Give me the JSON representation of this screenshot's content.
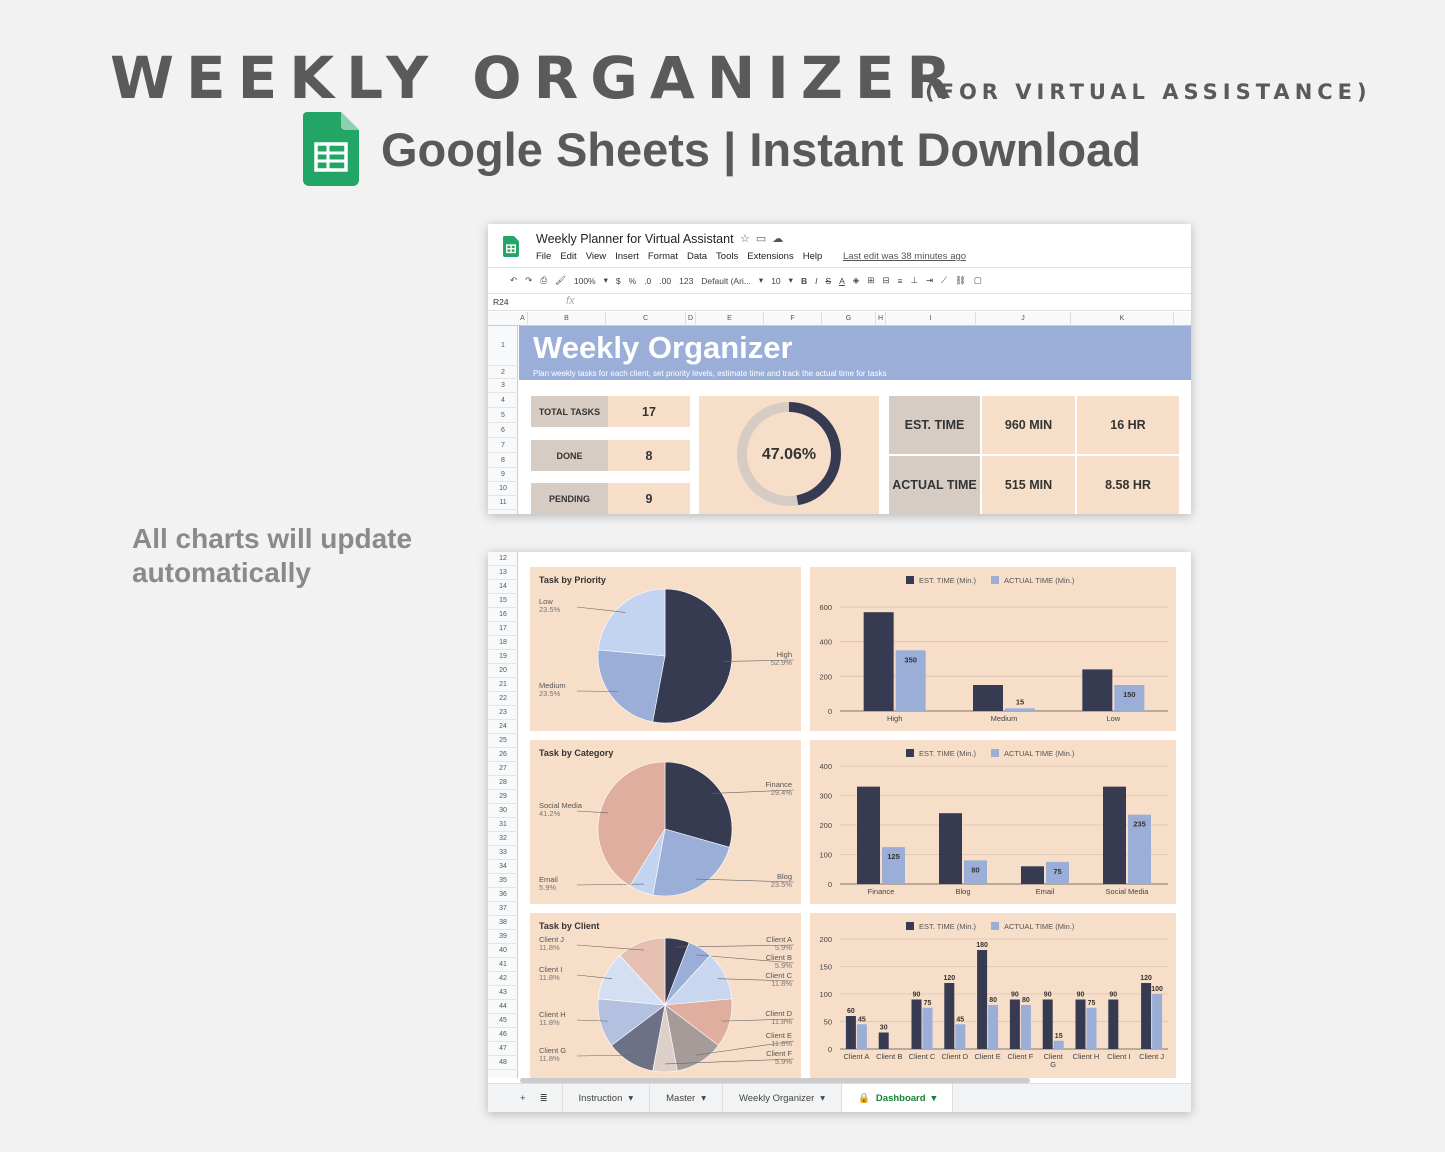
{
  "hero": {
    "title": "WEEKLY ORGANIZER",
    "subtitle": "(FOR VIRTUAL ASSISTANCE)",
    "line2": "Google Sheets | Instant Download",
    "side_note": "All charts will update automatically"
  },
  "sheet": {
    "doc_title": "Weekly Planner for Virtual Assistant",
    "menus": [
      "File",
      "Edit",
      "View",
      "Insert",
      "Format",
      "Data",
      "Tools",
      "Extensions",
      "Help"
    ],
    "last_edit": "Last edit was 38 minutes ago",
    "toolbar": {
      "zoom": "100%",
      "currency": "$",
      "percent": "%",
      "dec_less": ".0",
      "dec_more": ".00",
      "format": "123",
      "font": "Default (Ari...",
      "font_size": "10"
    },
    "cell_ref": "R24",
    "fx": "fx",
    "columns": [
      "A",
      "B",
      "C",
      "D",
      "E",
      "F",
      "G",
      "H",
      "I",
      "J",
      "K"
    ],
    "rows_top": [
      "1",
      "2",
      "3",
      "4",
      "5",
      "6",
      "7",
      "8",
      "9",
      "10",
      "11"
    ],
    "rows_bottom": [
      "12",
      "13",
      "14",
      "15",
      "16",
      "17",
      "18",
      "19",
      "20",
      "21",
      "22",
      "23",
      "24",
      "25",
      "26",
      "27",
      "28",
      "29",
      "30",
      "31",
      "32",
      "33",
      "34",
      "35",
      "36",
      "37",
      "38",
      "39",
      "40",
      "41",
      "42",
      "43",
      "44",
      "45",
      "46",
      "47",
      "48"
    ],
    "banner_title": "Weekly Organizer",
    "banner_subtitle": "Plan weekly tasks for each client, set priority levels, estimate time and track the actual time for tasks",
    "stats": {
      "total_label": "TOTAL TASKS",
      "total_value": "17",
      "done_label": "DONE",
      "done_value": "8",
      "pending_label": "PENDING",
      "pending_value": "9"
    },
    "progress": {
      "label": "47.06%",
      "fraction": 0.4706
    },
    "time": {
      "est_label": "EST. TIME",
      "est_min": "960 MIN",
      "est_hr": "16 HR",
      "actual_label": "ACTUAL TIME",
      "actual_min": "515 MIN",
      "actual_hr": "8.58 HR"
    },
    "tabs": [
      {
        "label": "Instruction"
      },
      {
        "label": "Master"
      },
      {
        "label": "Weekly Organizer"
      },
      {
        "label": "Dashboard",
        "active": true
      }
    ],
    "colors": {
      "navy": "#373b52",
      "periwinkle": "#9aaed8",
      "peach": "#f7dec9",
      "green": "#0f9d58"
    }
  },
  "chart_data": [
    {
      "type": "pie",
      "title": "Task by Priority",
      "slices": [
        {
          "name": "High",
          "value": 52.9,
          "label": "52.9%"
        },
        {
          "name": "Medium",
          "value": 23.5,
          "label": "23.5%"
        },
        {
          "name": "Low",
          "value": 23.5,
          "label": "23.5%"
        }
      ]
    },
    {
      "type": "bar",
      "title": "",
      "legend": [
        "EST. TIME (Min.)",
        "ACTUAL TIME (Min.)"
      ],
      "legend_position": "top",
      "categories": [
        "High",
        "Medium",
        "Low"
      ],
      "series": [
        {
          "name": "EST. TIME (Min.)",
          "values": [
            570,
            150,
            240
          ]
        },
        {
          "name": "ACTUAL TIME (Min.)",
          "values": [
            350,
            15,
            150
          ]
        }
      ],
      "data_labels": [
        "350",
        "15",
        "150"
      ],
      "yticks": [
        "0",
        "200",
        "400",
        "600"
      ],
      "ylim": [
        0,
        600
      ]
    },
    {
      "type": "pie",
      "title": "Task by Category",
      "slices": [
        {
          "name": "Finance",
          "value": 29.4,
          "label": "29.4%"
        },
        {
          "name": "Blog",
          "value": 23.5,
          "label": "23.5%"
        },
        {
          "name": "Email",
          "value": 5.9,
          "label": "5.9%"
        },
        {
          "name": "Social Media",
          "value": 41.2,
          "label": "41.2%"
        }
      ]
    },
    {
      "type": "bar",
      "title": "",
      "legend": [
        "EST. TIME (Min.)",
        "ACTUAL TIME (Min.)"
      ],
      "legend_position": "top",
      "categories": [
        "Finance",
        "Blog",
        "Email",
        "Social Media"
      ],
      "series": [
        {
          "name": "EST. TIME (Min.)",
          "values": [
            330,
            240,
            60,
            330
          ]
        },
        {
          "name": "ACTUAL TIME (Min.)",
          "values": [
            125,
            80,
            75,
            235
          ]
        }
      ],
      "data_labels": [
        "125",
        "80",
        "75",
        "235"
      ],
      "yticks": [
        "0",
        "100",
        "200",
        "300",
        "400"
      ],
      "ylim": [
        0,
        400
      ]
    },
    {
      "type": "pie",
      "title": "Task by Client",
      "slices": [
        {
          "name": "Client A",
          "value": 5.9,
          "label": "5.9%"
        },
        {
          "name": "Client B",
          "value": 5.9,
          "label": "5.9%"
        },
        {
          "name": "Client C",
          "value": 11.8,
          "label": "11.8%"
        },
        {
          "name": "Client D",
          "value": 11.8,
          "label": "11.8%"
        },
        {
          "name": "Client E",
          "value": 11.8,
          "label": "11.8%"
        },
        {
          "name": "Client F",
          "value": 5.9,
          "label": "5.9%"
        },
        {
          "name": "Client G",
          "value": 11.8,
          "label": "11.8%"
        },
        {
          "name": "Client H",
          "value": 11.8,
          "label": "11.8%"
        },
        {
          "name": "Client I",
          "value": 11.8,
          "label": "11.8%"
        },
        {
          "name": "Client J",
          "value": 11.8,
          "label": "11.8%"
        }
      ]
    },
    {
      "type": "bar",
      "title": "",
      "legend": [
        "EST. TIME (Min.)",
        "ACTUAL TIME (Min.)"
      ],
      "legend_position": "top",
      "categories": [
        "Client A",
        "Client B",
        "Client C",
        "Client D",
        "Client E",
        "Client F",
        "Client G",
        "Client H",
        "Client I",
        "Client J"
      ],
      "series": [
        {
          "name": "EST. TIME (Min.)",
          "values": [
            60,
            30,
            90,
            120,
            180,
            90,
            90,
            90,
            90,
            120
          ]
        },
        {
          "name": "ACTUAL TIME (Min.)",
          "values": [
            45,
            0,
            75,
            45,
            80,
            80,
            15,
            75,
            0,
            100
          ]
        }
      ],
      "est_labels": [
        "60",
        "30",
        "90",
        "120",
        "180",
        "90",
        "90",
        "90",
        "90",
        "120"
      ],
      "actual_labels": [
        "45",
        "",
        "75",
        "45",
        "80",
        "80",
        "15",
        "75",
        "",
        "100"
      ],
      "yticks": [
        "0",
        "50",
        "100",
        "150",
        "200"
      ],
      "ylim": [
        0,
        200
      ]
    }
  ]
}
